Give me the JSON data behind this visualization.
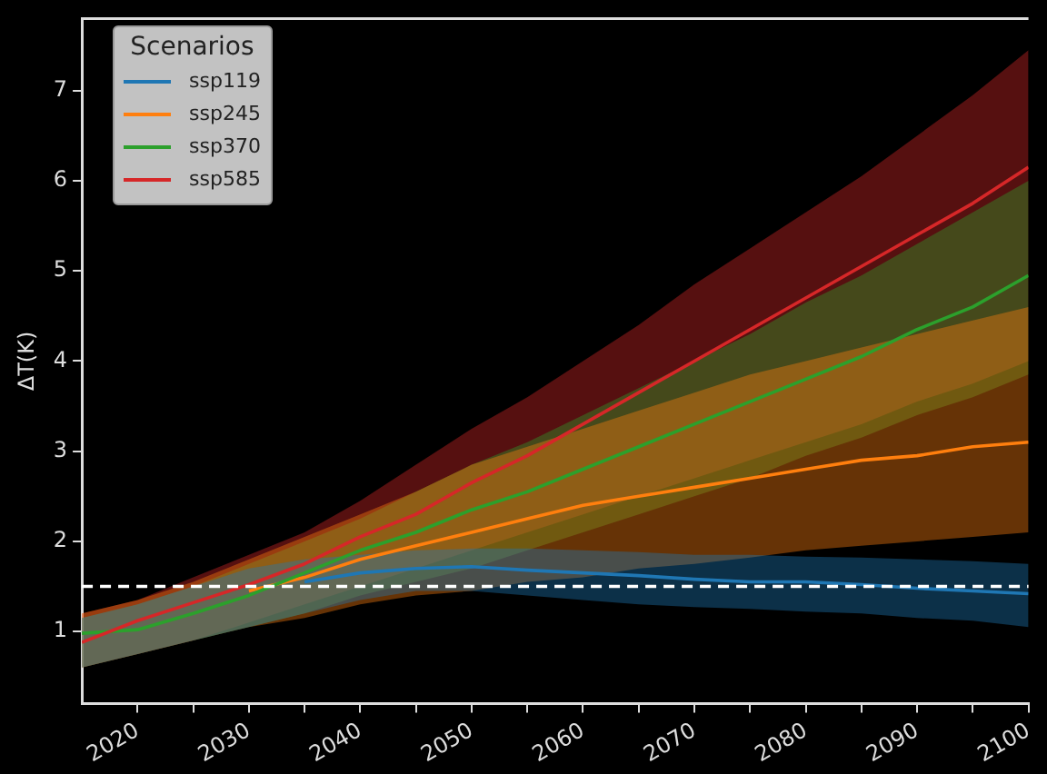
{
  "chart_data": {
    "type": "line",
    "ylabel": "ΔT(K)",
    "legend_title": "Scenarios",
    "legend": "top left",
    "grid": false,
    "marker": "none",
    "line_style": "solid",
    "x": [
      2015,
      2020,
      2025,
      2030,
      2035,
      2040,
      2045,
      2050,
      2055,
      2060,
      2065,
      2070,
      2075,
      2080,
      2085,
      2090,
      2095,
      2100
    ],
    "xlim": [
      2015,
      2100
    ],
    "xticks": [
      2020,
      {
        "value": 2025,
        "label": null
      },
      2030,
      {
        "value": 2035,
        "label": null
      },
      2040,
      {
        "value": 2045,
        "label": null
      },
      2050,
      {
        "value": 2055,
        "label": null
      },
      2060,
      {
        "value": 2065,
        "label": null
      },
      2070,
      {
        "value": 2075,
        "label": null
      },
      2080,
      {
        "value": 2085,
        "label": null
      },
      2090,
      {
        "value": 2095,
        "label": null
      },
      2100
    ],
    "ylim": [
      0.2,
      7.8
    ],
    "yticks": [
      1,
      2,
      3,
      4,
      5,
      6,
      7
    ],
    "ref_lines": [
      {
        "axis": "y",
        "value": 1.5,
        "color": "#ffffff",
        "line_style": "dashed"
      }
    ],
    "series": [
      {
        "name": "ssp119",
        "color": "#1f77b4",
        "values": [
          null,
          null,
          null,
          null,
          1.55,
          1.65,
          1.7,
          1.72,
          1.68,
          1.65,
          1.62,
          1.58,
          1.55,
          1.55,
          1.52,
          1.48,
          1.45,
          1.42
        ],
        "lower": [
          0.6,
          0.75,
          0.9,
          1.05,
          1.2,
          1.35,
          1.45,
          1.45,
          1.4,
          1.35,
          1.3,
          1.27,
          1.25,
          1.22,
          1.2,
          1.15,
          1.12,
          1.05
        ],
        "upper": [
          1.15,
          1.3,
          1.5,
          1.7,
          1.8,
          1.85,
          1.9,
          1.92,
          1.92,
          1.9,
          1.88,
          1.85,
          1.85,
          1.83,
          1.82,
          1.8,
          1.78,
          1.75
        ]
      },
      {
        "name": "ssp245",
        "color": "#ff7f0e",
        "values": [
          null,
          null,
          null,
          1.45,
          1.6,
          1.8,
          1.95,
          2.1,
          2.25,
          2.4,
          2.5,
          2.6,
          2.7,
          2.8,
          2.9,
          2.95,
          3.05,
          3.1
        ],
        "lower": [
          0.6,
          0.75,
          0.9,
          1.05,
          1.15,
          1.3,
          1.4,
          1.45,
          1.55,
          1.6,
          1.7,
          1.75,
          1.82,
          1.9,
          1.95,
          2.0,
          2.05,
          2.1
        ],
        "upper": [
          1.2,
          1.35,
          1.55,
          1.8,
          2.05,
          2.3,
          2.55,
          2.85,
          3.05,
          3.25,
          3.45,
          3.65,
          3.85,
          4.0,
          4.15,
          4.3,
          4.45,
          4.6
        ]
      },
      {
        "name": "ssp370",
        "color": "#2ca02c",
        "values": [
          0.98,
          1.02,
          1.2,
          1.4,
          1.65,
          1.9,
          2.1,
          2.35,
          2.55,
          2.8,
          3.05,
          3.3,
          3.55,
          3.8,
          4.05,
          4.35,
          4.6,
          4.95
        ],
        "lower": [
          0.6,
          0.75,
          0.9,
          1.05,
          1.2,
          1.4,
          1.55,
          1.7,
          1.9,
          2.1,
          2.3,
          2.5,
          2.7,
          2.95,
          3.15,
          3.4,
          3.6,
          3.85
        ],
        "upper": [
          1.15,
          1.3,
          1.5,
          1.75,
          2.0,
          2.25,
          2.55,
          2.85,
          3.1,
          3.4,
          3.7,
          4.0,
          4.3,
          4.65,
          4.95,
          5.3,
          5.65,
          6.0
        ]
      },
      {
        "name": "ssp585",
        "color": "#d62728",
        "values": [
          0.88,
          1.12,
          1.32,
          1.52,
          1.75,
          2.05,
          2.3,
          2.65,
          2.95,
          3.3,
          3.65,
          4.0,
          4.35,
          4.7,
          5.05,
          5.4,
          5.75,
          6.15
        ],
        "lower": [
          0.6,
          0.75,
          0.9,
          1.1,
          1.3,
          1.5,
          1.7,
          1.9,
          2.1,
          2.3,
          2.5,
          2.7,
          2.9,
          3.1,
          3.3,
          3.55,
          3.75,
          4.0
        ],
        "upper": [
          1.2,
          1.35,
          1.6,
          1.85,
          2.1,
          2.45,
          2.85,
          3.25,
          3.6,
          4.0,
          4.4,
          4.85,
          5.25,
          5.65,
          6.05,
          6.5,
          6.95,
          7.45
        ]
      }
    ]
  }
}
